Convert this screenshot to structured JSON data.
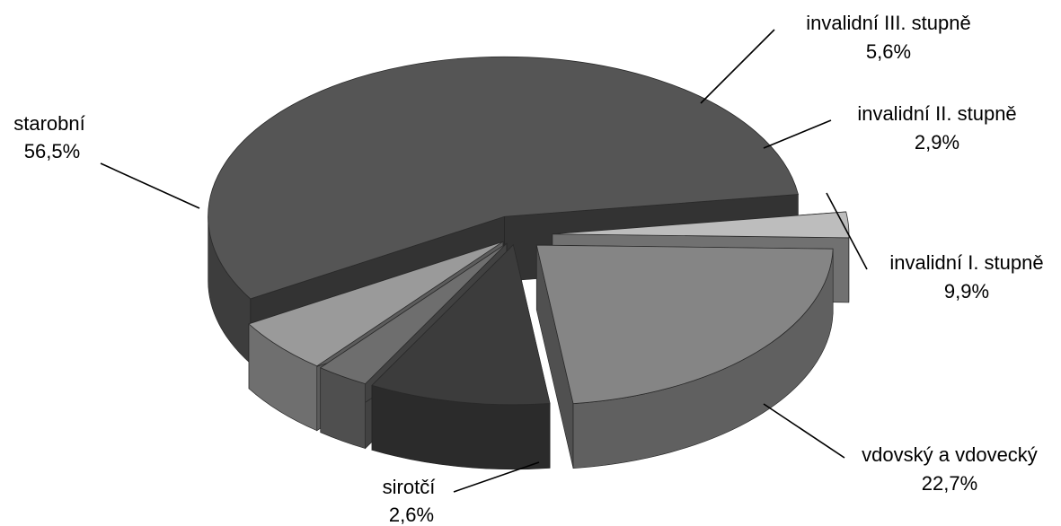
{
  "chart_data": {
    "type": "pie",
    "title": "",
    "slices": [
      {
        "label": "starobní",
        "value": 56.5,
        "value_label": "56,5%",
        "color": "#555555"
      },
      {
        "label": "invalidní III. stupně",
        "value": 5.6,
        "value_label": "5,6%",
        "color": "#9a9a9a"
      },
      {
        "label": "invalidní II. stupně",
        "value": 2.9,
        "value_label": "2,9%",
        "color": "#6e6e6e"
      },
      {
        "label": "invalidní I. stupně",
        "value": 9.9,
        "value_label": "9,9%",
        "color": "#3c3c3c"
      },
      {
        "label": "vdovský a vdovecký",
        "value": 22.7,
        "value_label": "22,7%",
        "color": "#858585"
      },
      {
        "label": "sirotčí",
        "value": 2.6,
        "value_label": "2,6%",
        "color": "#bdbdbd"
      }
    ],
    "style": "3d-exploded",
    "legend": "none"
  }
}
